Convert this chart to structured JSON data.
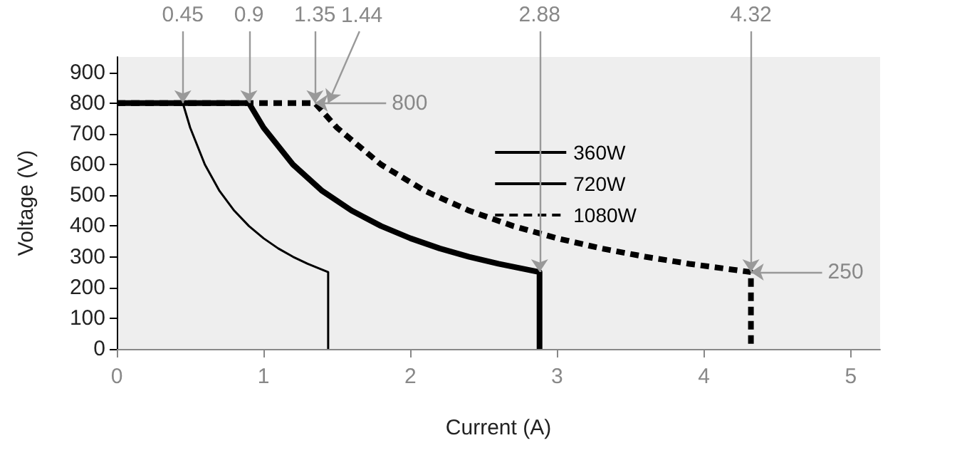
{
  "chart_data": {
    "type": "line",
    "xlabel": "Current (A)",
    "ylabel": "Voltage (V)",
    "xlim": [
      0,
      5.2
    ],
    "xticks": [
      0,
      1,
      2,
      3,
      4,
      5
    ],
    "ylim": [
      0,
      950
    ],
    "yticks": [
      0,
      100,
      200,
      300,
      400,
      500,
      600,
      700,
      800,
      900
    ],
    "grid": false,
    "legend": "right",
    "marker": "none",
    "series": [
      {
        "name": "360W",
        "color": "#000000",
        "line_style": "solid",
        "x": [
          0,
          0.45,
          0.5,
          0.6,
          0.7,
          0.8,
          0.9,
          1.0,
          1.1,
          1.2,
          1.3,
          1.44,
          1.44
        ],
        "values": [
          800,
          800,
          720,
          600,
          514,
          450,
          400,
          360,
          327,
          300,
          277,
          250,
          0
        ]
      },
      {
        "name": "720W",
        "color": "#000000",
        "line_style": "solid",
        "x": [
          0,
          0.9,
          1.0,
          1.2,
          1.4,
          1.6,
          1.8,
          2.0,
          2.2,
          2.4,
          2.6,
          2.88,
          2.88
        ],
        "values": [
          800,
          800,
          720,
          600,
          514,
          450,
          400,
          360,
          327,
          300,
          277,
          250,
          0
        ]
      },
      {
        "name": "1080W",
        "color": "#000000",
        "line_style": "dashed",
        "x": [
          0,
          1.35,
          1.5,
          1.8,
          2.1,
          2.4,
          2.7,
          3.0,
          3.3,
          3.6,
          3.9,
          4.32,
          4.32
        ],
        "values": [
          800,
          800,
          720,
          600,
          514,
          450,
          400,
          360,
          327,
          300,
          277,
          250,
          0
        ]
      }
    ],
    "annotations": [
      {
        "text": "0.45",
        "x": 0.45,
        "y": 800
      },
      {
        "text": "0.9",
        "x": 0.9,
        "y": 800
      },
      {
        "text": "1.35",
        "x": 1.35,
        "y": 800
      },
      {
        "text": "1.44",
        "x": 1.44,
        "y": 800
      },
      {
        "text": "2.88",
        "x": 2.88,
        "y": 250
      },
      {
        "text": "4.32",
        "x": 4.32,
        "y": 250
      },
      {
        "text": "800",
        "x": 1.35,
        "y": 800
      },
      {
        "text": "250",
        "x": 4.32,
        "y": 250
      }
    ]
  }
}
